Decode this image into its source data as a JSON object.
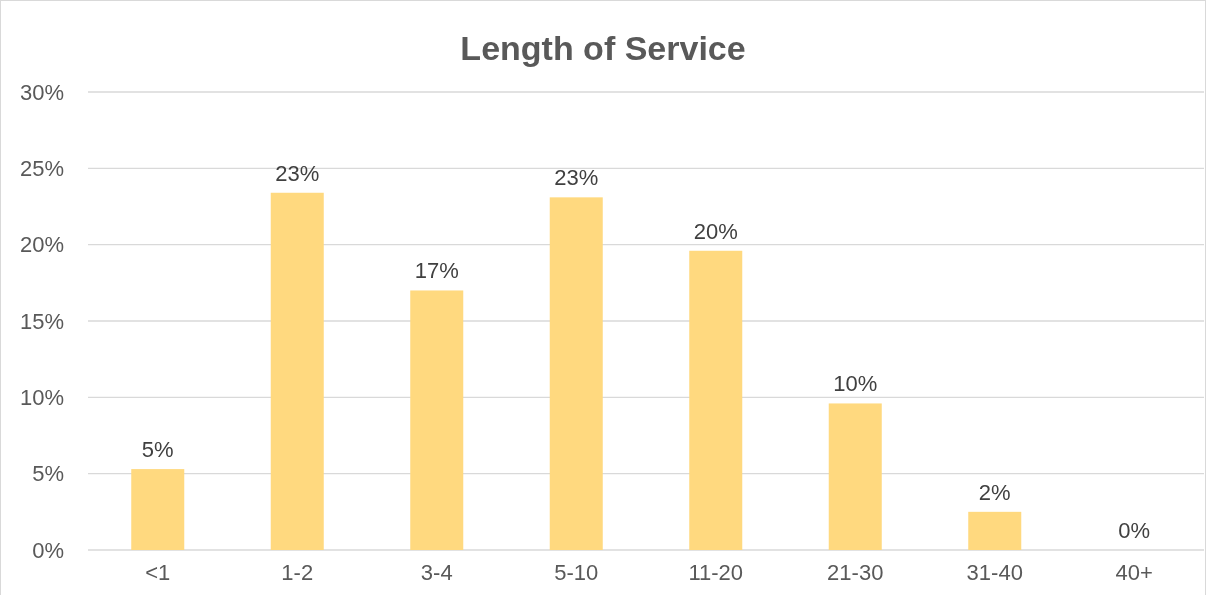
{
  "chart_data": {
    "type": "bar",
    "title": "Length of Service",
    "categories": [
      "<1",
      "1-2",
      "3-4",
      "5-10",
      "11-20",
      "21-30",
      "31-40",
      "40+"
    ],
    "values": [
      5.3,
      23.4,
      17.0,
      23.1,
      19.6,
      9.6,
      2.5,
      0
    ],
    "value_labels": [
      "5%",
      "23%",
      "17%",
      "23%",
      "20%",
      "10%",
      "2%",
      "0%"
    ],
    "color": "#ffd97f",
    "ylim": [
      0,
      30
    ],
    "yticks": [
      {
        "value": 0,
        "label": "0%"
      },
      {
        "value": 5,
        "label": "5%"
      },
      {
        "value": 10,
        "label": "10%"
      },
      {
        "value": 15,
        "label": "15%"
      },
      {
        "value": 20,
        "label": "20%"
      },
      {
        "value": 25,
        "label": "25%"
      },
      {
        "value": 30,
        "label": "30%"
      }
    ],
    "grid": "y"
  }
}
